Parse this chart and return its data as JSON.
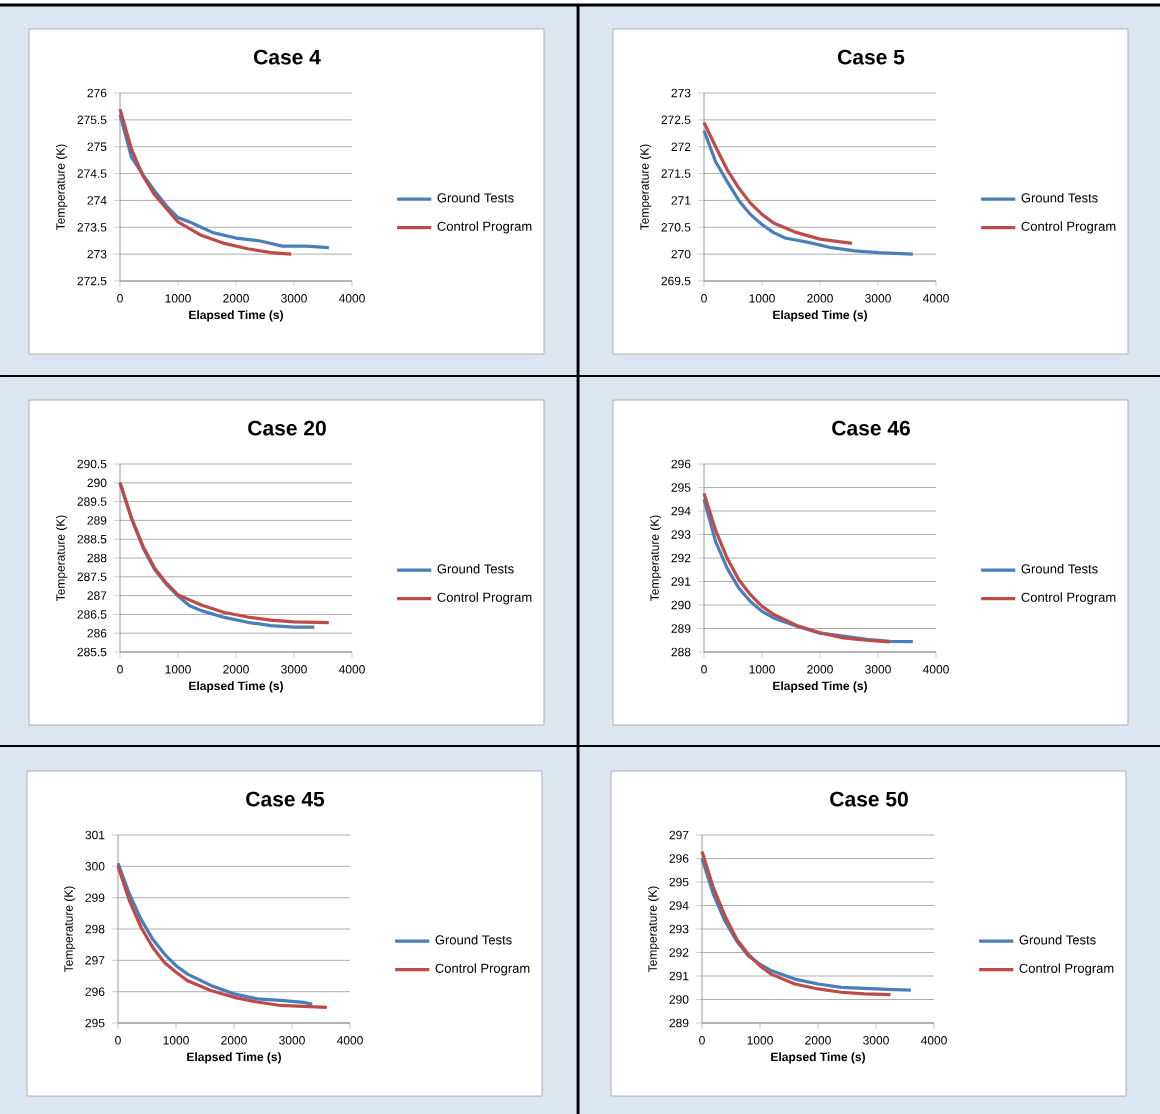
{
  "chart_data": [
    {
      "type": "line",
      "title": "Case 4",
      "xlabel": "Elapsed Time (s)",
      "ylabel": "Temperature (K)",
      "xlim": [
        0,
        4000
      ],
      "xticks": [
        0,
        1000,
        2000,
        3000,
        4000
      ],
      "ylim": [
        272.5,
        276
      ],
      "yticks": [
        272.5,
        273,
        273.5,
        274,
        274.5,
        275,
        275.5,
        276
      ],
      "grid": "y",
      "legend": "right",
      "series": [
        {
          "name": "Ground Tests",
          "color": "#4a7ebb",
          "x": [
            0,
            200,
            400,
            600,
            800,
            1000,
            1200,
            1400,
            1600,
            2000,
            2400,
            2800,
            3200,
            3600
          ],
          "values": [
            275.6,
            274.8,
            274.47,
            274.17,
            273.9,
            273.68,
            273.6,
            273.5,
            273.4,
            273.3,
            273.25,
            273.15,
            273.15,
            273.12
          ]
        },
        {
          "name": "Control Program",
          "color": "#be4b48",
          "x": [
            0,
            200,
            400,
            600,
            800,
            1000,
            1400,
            1800,
            2200,
            2600,
            2950
          ],
          "values": [
            275.7,
            274.95,
            274.45,
            274.1,
            273.85,
            273.6,
            273.35,
            273.2,
            273.1,
            273.03,
            273.0
          ]
        }
      ]
    },
    {
      "type": "line",
      "title": "Case 5",
      "xlabel": "Elapsed Time (s)",
      "ylabel": "Temperature (K)",
      "xlim": [
        0,
        4000
      ],
      "xticks": [
        0,
        1000,
        2000,
        3000,
        4000
      ],
      "ylim": [
        269.5,
        273
      ],
      "yticks": [
        269.5,
        270,
        270.5,
        271,
        271.5,
        272,
        272.5,
        273
      ],
      "grid": "y",
      "legend": "right",
      "series": [
        {
          "name": "Ground Tests",
          "color": "#4a7ebb",
          "x": [
            0,
            200,
            400,
            600,
            800,
            1000,
            1200,
            1400,
            1800,
            2200,
            2600,
            3000,
            3600
          ],
          "values": [
            272.3,
            271.72,
            271.35,
            271.0,
            270.74,
            270.55,
            270.4,
            270.3,
            270.22,
            270.12,
            270.06,
            270.03,
            270.0
          ]
        },
        {
          "name": "Control Program",
          "color": "#be4b48",
          "x": [
            0,
            200,
            400,
            600,
            800,
            1000,
            1200,
            1600,
            2000,
            2550
          ],
          "values": [
            272.45,
            272.0,
            271.57,
            271.23,
            270.95,
            270.74,
            270.58,
            270.4,
            270.28,
            270.2
          ]
        }
      ]
    },
    {
      "type": "line",
      "title": "Case 20",
      "xlabel": "Elapsed Time (s)",
      "ylabel": "Temperature (K)",
      "xlim": [
        0,
        4000
      ],
      "xticks": [
        0,
        1000,
        2000,
        3000,
        4000
      ],
      "ylim": [
        285.5,
        290.5
      ],
      "yticks": [
        285.5,
        286,
        286.5,
        287,
        287.5,
        288,
        288.5,
        289,
        289.5,
        290,
        290.5
      ],
      "grid": "y",
      "legend": "right",
      "series": [
        {
          "name": "Ground Tests",
          "color": "#4a7ebb",
          "x": [
            0,
            200,
            400,
            600,
            800,
            1000,
            1200,
            1400,
            1800,
            2200,
            2600,
            3000,
            3350
          ],
          "values": [
            290.0,
            289.05,
            288.26,
            287.69,
            287.3,
            286.99,
            286.73,
            286.6,
            286.42,
            286.29,
            286.2,
            286.16,
            286.16
          ]
        },
        {
          "name": "Control Program",
          "color": "#be4b48",
          "x": [
            0,
            200,
            400,
            600,
            800,
            1000,
            1400,
            1800,
            2200,
            2600,
            3000,
            3600
          ],
          "values": [
            290.0,
            289.05,
            288.3,
            287.72,
            287.33,
            287.02,
            286.75,
            286.55,
            286.43,
            286.35,
            286.3,
            286.28
          ]
        }
      ]
    },
    {
      "type": "line",
      "title": "Case 46",
      "xlabel": "Elapsed Time (s)",
      "ylabel": "Temperature (K)",
      "xlim": [
        0,
        4000
      ],
      "xticks": [
        0,
        1000,
        2000,
        3000,
        4000
      ],
      "ylim": [
        288,
        296
      ],
      "yticks": [
        288,
        289,
        290,
        291,
        292,
        293,
        294,
        295,
        296
      ],
      "grid": "y",
      "legend": "right",
      "series": [
        {
          "name": "Ground Tests",
          "color": "#4a7ebb",
          "x": [
            0,
            200,
            400,
            600,
            800,
            1000,
            1200,
            1600,
            2000,
            2400,
            2800,
            3200,
            3600
          ],
          "values": [
            294.5,
            292.7,
            291.56,
            290.72,
            290.15,
            289.73,
            289.45,
            289.1,
            288.8,
            288.68,
            288.54,
            288.45,
            288.44
          ]
        },
        {
          "name": "Control Program",
          "color": "#be4b48",
          "x": [
            0,
            200,
            400,
            600,
            800,
            1000,
            1200,
            1600,
            2000,
            2400,
            2800,
            3200
          ],
          "values": [
            294.75,
            293.18,
            291.99,
            291.07,
            290.44,
            289.94,
            289.6,
            289.13,
            288.82,
            288.6,
            288.5,
            288.43
          ]
        }
      ]
    },
    {
      "type": "line",
      "title": "Case 45",
      "xlabel": "Elapsed Time (s)",
      "ylabel": "Temperature (K)",
      "xlim": [
        0,
        4000
      ],
      "xticks": [
        0,
        1000,
        2000,
        3000,
        4000
      ],
      "ylim": [
        295,
        301
      ],
      "yticks": [
        295,
        296,
        297,
        298,
        299,
        300,
        301
      ],
      "grid": "y",
      "legend": "right",
      "series": [
        {
          "name": "Ground Tests",
          "color": "#4a7ebb",
          "x": [
            0,
            200,
            400,
            600,
            800,
            1000,
            1200,
            1600,
            2000,
            2400,
            2800,
            3200,
            3350
          ],
          "values": [
            300.1,
            299.1,
            298.3,
            297.67,
            297.2,
            296.83,
            296.56,
            296.2,
            295.93,
            295.77,
            295.72,
            295.66,
            295.6
          ]
        },
        {
          "name": "Control Program",
          "color": "#be4b48",
          "x": [
            0,
            200,
            400,
            600,
            800,
            1000,
            1200,
            1600,
            2000,
            2400,
            2800,
            3200,
            3600
          ],
          "values": [
            300.0,
            298.89,
            298.04,
            297.41,
            296.93,
            296.62,
            296.35,
            296.04,
            295.82,
            295.67,
            295.56,
            295.53,
            295.5
          ]
        }
      ]
    },
    {
      "type": "line",
      "title": "Case 50",
      "xlabel": "Elapsed Time (s)",
      "ylabel": "Temperature (K)",
      "xlim": [
        0,
        4000
      ],
      "xticks": [
        0,
        1000,
        2000,
        3000,
        4000
      ],
      "ylim": [
        289,
        297
      ],
      "yticks": [
        289,
        290,
        291,
        292,
        293,
        294,
        295,
        296,
        297
      ],
      "grid": "y",
      "legend": "right",
      "series": [
        {
          "name": "Ground Tests",
          "color": "#4a7ebb",
          "x": [
            0,
            200,
            400,
            600,
            800,
            1000,
            1200,
            1600,
            2000,
            2400,
            2800,
            3200,
            3600
          ],
          "values": [
            296.0,
            294.45,
            293.32,
            292.48,
            291.85,
            291.5,
            291.22,
            290.87,
            290.66,
            290.52,
            290.47,
            290.43,
            290.4
          ]
        },
        {
          "name": "Control Program",
          "color": "#be4b48",
          "x": [
            0,
            200,
            400,
            600,
            800,
            1000,
            1200,
            1600,
            2000,
            2400,
            2800,
            3250
          ],
          "values": [
            296.3,
            294.73,
            293.53,
            292.55,
            291.92,
            291.43,
            291.07,
            290.66,
            290.45,
            290.31,
            290.24,
            290.21
          ]
        }
      ]
    }
  ]
}
